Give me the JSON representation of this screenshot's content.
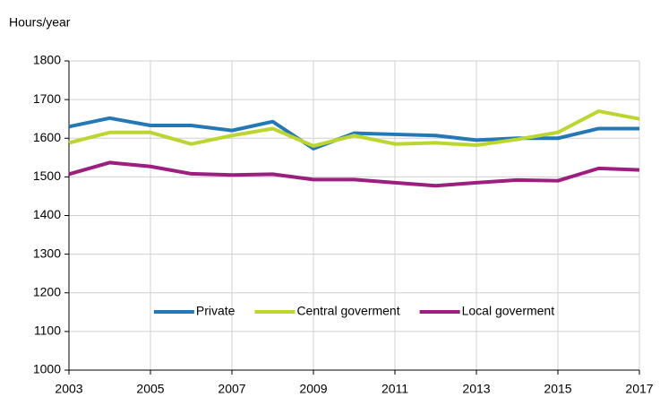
{
  "chart_data": {
    "type": "line",
    "y_label": "Hours/year",
    "x": [
      2003,
      2004,
      2005,
      2006,
      2007,
      2008,
      2009,
      2010,
      2011,
      2012,
      2013,
      2014,
      2015,
      2016,
      2017
    ],
    "series": [
      {
        "name": "Private",
        "color": "#2378b5",
        "values": [
          1630,
          1652,
          1633,
          1633,
          1620,
          1643,
          1573,
          1613,
          1610,
          1607,
          1595,
          1600,
          1600,
          1625,
          1625
        ]
      },
      {
        "name": "Central goverment",
        "color": "#bdd52f",
        "values": [
          1588,
          1615,
          1615,
          1585,
          1607,
          1625,
          1580,
          1607,
          1585,
          1588,
          1582,
          1597,
          1615,
          1670,
          1650
        ]
      },
      {
        "name": "Local goverment",
        "color": "#9c1f7f",
        "values": [
          1507,
          1537,
          1527,
          1508,
          1505,
          1507,
          1493,
          1493,
          1485,
          1477,
          1485,
          1492,
          1490,
          1522,
          1518
        ]
      }
    ],
    "xlim": [
      2003,
      2017
    ],
    "xticks": [
      2003,
      2005,
      2007,
      2009,
      2011,
      2013,
      2015,
      2017
    ],
    "ylim": [
      1000,
      1800
    ],
    "yticks": [
      1000,
      1100,
      1200,
      1300,
      1400,
      1500,
      1600,
      1700,
      1800
    ],
    "grid": true,
    "legend": "lower center"
  }
}
